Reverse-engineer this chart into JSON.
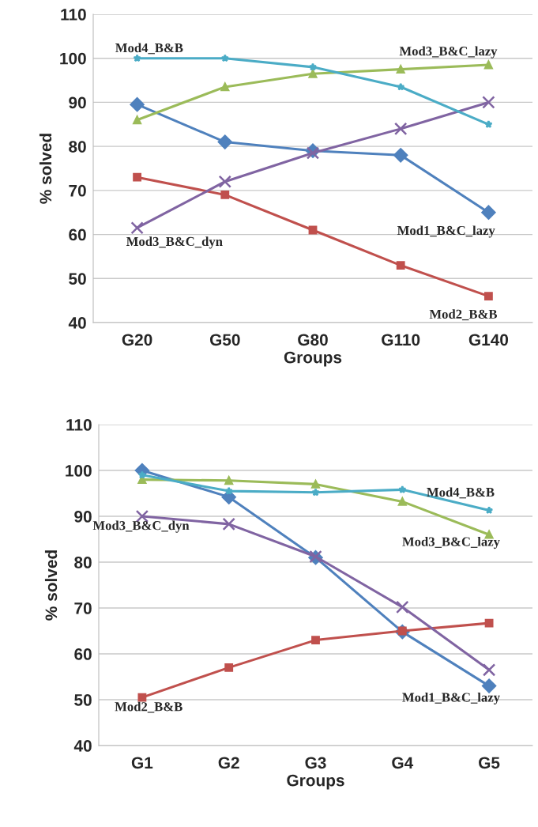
{
  "chart_data": [
    {
      "type": "line",
      "xlabel": "Groups",
      "ylabel": "% solved",
      "categories": [
        "G20",
        "G50",
        "G80",
        "G110",
        "G140"
      ],
      "ylim": [
        40,
        110
      ],
      "yticks": [
        40,
        50,
        60,
        70,
        80,
        90,
        100,
        110
      ],
      "grid": "y",
      "legend": false,
      "series": [
        {
          "name": "Mod1_B&C_lazy",
          "color": "#4f81bd",
          "marker": "diamond",
          "values": [
            89.5,
            81,
            79,
            78,
            65
          ]
        },
        {
          "name": "Mod2_B&B",
          "color": "#c0504d",
          "marker": "square",
          "values": [
            73,
            69,
            61,
            53,
            46
          ]
        },
        {
          "name": "Mod3_B&C_lazy",
          "color": "#9bbb59",
          "marker": "triangle",
          "values": [
            86,
            93.5,
            96.5,
            97.5,
            98.5
          ]
        },
        {
          "name": "Mod3_B&C_dyn",
          "color": "#8064a2",
          "marker": "cross",
          "values": [
            61.5,
            72,
            78.5,
            84,
            90
          ]
        },
        {
          "name": "Mod4_B&B",
          "color": "#4bacc6",
          "marker": "star",
          "values": [
            100,
            100,
            98,
            93.5,
            85
          ]
        }
      ]
    },
    {
      "type": "line",
      "xlabel": "Groups",
      "ylabel": "% solved",
      "categories": [
        "G1",
        "G2",
        "G3",
        "G4",
        "G5"
      ],
      "ylim": [
        40,
        110
      ],
      "yticks": [
        40,
        50,
        60,
        70,
        80,
        90,
        100,
        110
      ],
      "grid": "y",
      "legend": false,
      "series": [
        {
          "name": "Mod1_B&C_lazy",
          "color": "#4f81bd",
          "marker": "diamond",
          "values": [
            100,
            94.2,
            81,
            64.8,
            53
          ]
        },
        {
          "name": "Mod2_B&B",
          "color": "#c0504d",
          "marker": "square",
          "values": [
            50.5,
            57,
            63,
            65,
            66.7
          ]
        },
        {
          "name": "Mod3_B&C_lazy",
          "color": "#9bbb59",
          "marker": "triangle",
          "values": [
            98,
            97.8,
            97,
            93.2,
            86
          ]
        },
        {
          "name": "Mod3_B&C_dyn",
          "color": "#8064a2",
          "marker": "cross",
          "values": [
            90,
            88.3,
            81.2,
            70.2,
            56.5
          ]
        },
        {
          "name": "Mod4_B&B",
          "color": "#4bacc6",
          "marker": "star",
          "values": [
            99,
            95.5,
            95.2,
            95.8,
            91.3
          ]
        }
      ]
    }
  ]
}
